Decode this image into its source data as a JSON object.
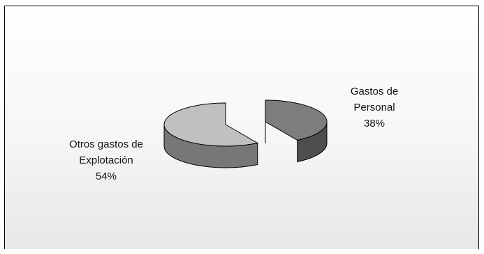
{
  "chart_data": {
    "type": "pie",
    "style": "3d-exploded",
    "grid": false,
    "legend": "none",
    "slices": [
      {
        "label_lines": [
          "Gastos de",
          "Personal"
        ],
        "percent_label": "38%",
        "value": 38,
        "color": "#7d7d7d"
      },
      {
        "label_lines": [
          "Otros gastos de",
          "Explotación"
        ],
        "percent_label": "54%",
        "value": 54,
        "color": "#c0c0c0"
      }
    ]
  }
}
